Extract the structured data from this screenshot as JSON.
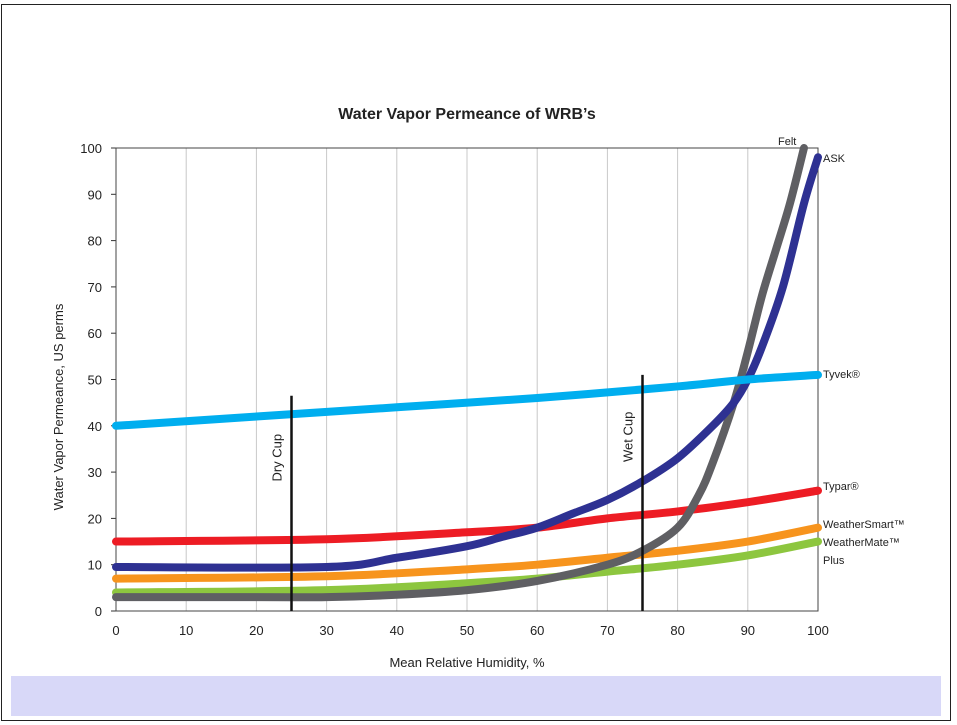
{
  "chart_data": {
    "type": "line",
    "title": "Water Vapor Permeance of WRB’s",
    "xlabel": "Mean Relative Humidity, %",
    "ylabel": "Water Vapor Permeance, US perms",
    "xlim": [
      0,
      100
    ],
    "ylim": [
      0,
      100
    ],
    "x_ticks": [
      "0",
      "10",
      "20",
      "30",
      "40",
      "50",
      "60",
      "70",
      "80",
      "90",
      "100"
    ],
    "y_ticks": [
      "0",
      "10",
      "20",
      "30",
      "40",
      "50",
      "60",
      "70",
      "80",
      "90",
      "100"
    ],
    "grid": "vertical",
    "series": [
      {
        "name": "Felt",
        "color": "#5f5f63",
        "points": [
          [
            0,
            3
          ],
          [
            20,
            3
          ],
          [
            30,
            3
          ],
          [
            40,
            3.5
          ],
          [
            50,
            4.5
          ],
          [
            60,
            6.5
          ],
          [
            70,
            10
          ],
          [
            75,
            13
          ],
          [
            80,
            18
          ],
          [
            83,
            25
          ],
          [
            85,
            32
          ],
          [
            88,
            45
          ],
          [
            90,
            56
          ],
          [
            92,
            68
          ],
          [
            94,
            78
          ],
          [
            96,
            88
          ],
          [
            98,
            100
          ]
        ]
      },
      {
        "name": "ASK",
        "color": "#2e3192",
        "points": [
          [
            0,
            9.5
          ],
          [
            30,
            9.5
          ],
          [
            40,
            11.5
          ],
          [
            50,
            14
          ],
          [
            55,
            16
          ],
          [
            60,
            18
          ],
          [
            65,
            21
          ],
          [
            70,
            24
          ],
          [
            75,
            28
          ],
          [
            80,
            33
          ],
          [
            85,
            40
          ],
          [
            88,
            45
          ],
          [
            90,
            50
          ],
          [
            92,
            57
          ],
          [
            95,
            70
          ],
          [
            98,
            88
          ],
          [
            100,
            98
          ]
        ]
      },
      {
        "name": "Tyvek®",
        "color": "#00aeef",
        "points": [
          [
            0,
            40
          ],
          [
            20,
            42
          ],
          [
            40,
            44
          ],
          [
            60,
            46
          ],
          [
            80,
            48.5
          ],
          [
            90,
            50
          ],
          [
            100,
            51
          ]
        ]
      },
      {
        "name": "Typar®",
        "color": "#ed1c24",
        "points": [
          [
            0,
            15
          ],
          [
            30,
            15.5
          ],
          [
            50,
            17
          ],
          [
            60,
            18
          ],
          [
            70,
            20
          ],
          [
            80,
            21.5
          ],
          [
            90,
            23.5
          ],
          [
            100,
            26
          ]
        ]
      },
      {
        "name": "WeatherSmart™",
        "color": "#f7941d",
        "points": [
          [
            0,
            7
          ],
          [
            30,
            7.5
          ],
          [
            50,
            9
          ],
          [
            60,
            10
          ],
          [
            70,
            11.5
          ],
          [
            80,
            13
          ],
          [
            90,
            15
          ],
          [
            100,
            18
          ]
        ]
      },
      {
        "name": "WeatherMate™ Plus",
        "color": "#8dc63f",
        "points": [
          [
            0,
            4
          ],
          [
            30,
            4.5
          ],
          [
            50,
            6
          ],
          [
            60,
            7
          ],
          [
            70,
            8.5
          ],
          [
            80,
            10
          ],
          [
            90,
            12
          ],
          [
            100,
            15
          ]
        ]
      }
    ],
    "annotations": [
      {
        "label": "Dry Cup",
        "x": 25,
        "y_range": [
          0,
          46.5
        ]
      },
      {
        "label": "Wet Cup",
        "x": 75,
        "y_range": [
          0,
          51
        ]
      }
    ],
    "series_labels": {
      "felt": "Felt",
      "ask": "ASK",
      "tyvek": "Tyvek®",
      "typar": "Typar®",
      "weathersmart": "WeatherSmart™",
      "weathermate_line1": "WeatherMate™",
      "weathermate_line2": "Plus"
    }
  }
}
